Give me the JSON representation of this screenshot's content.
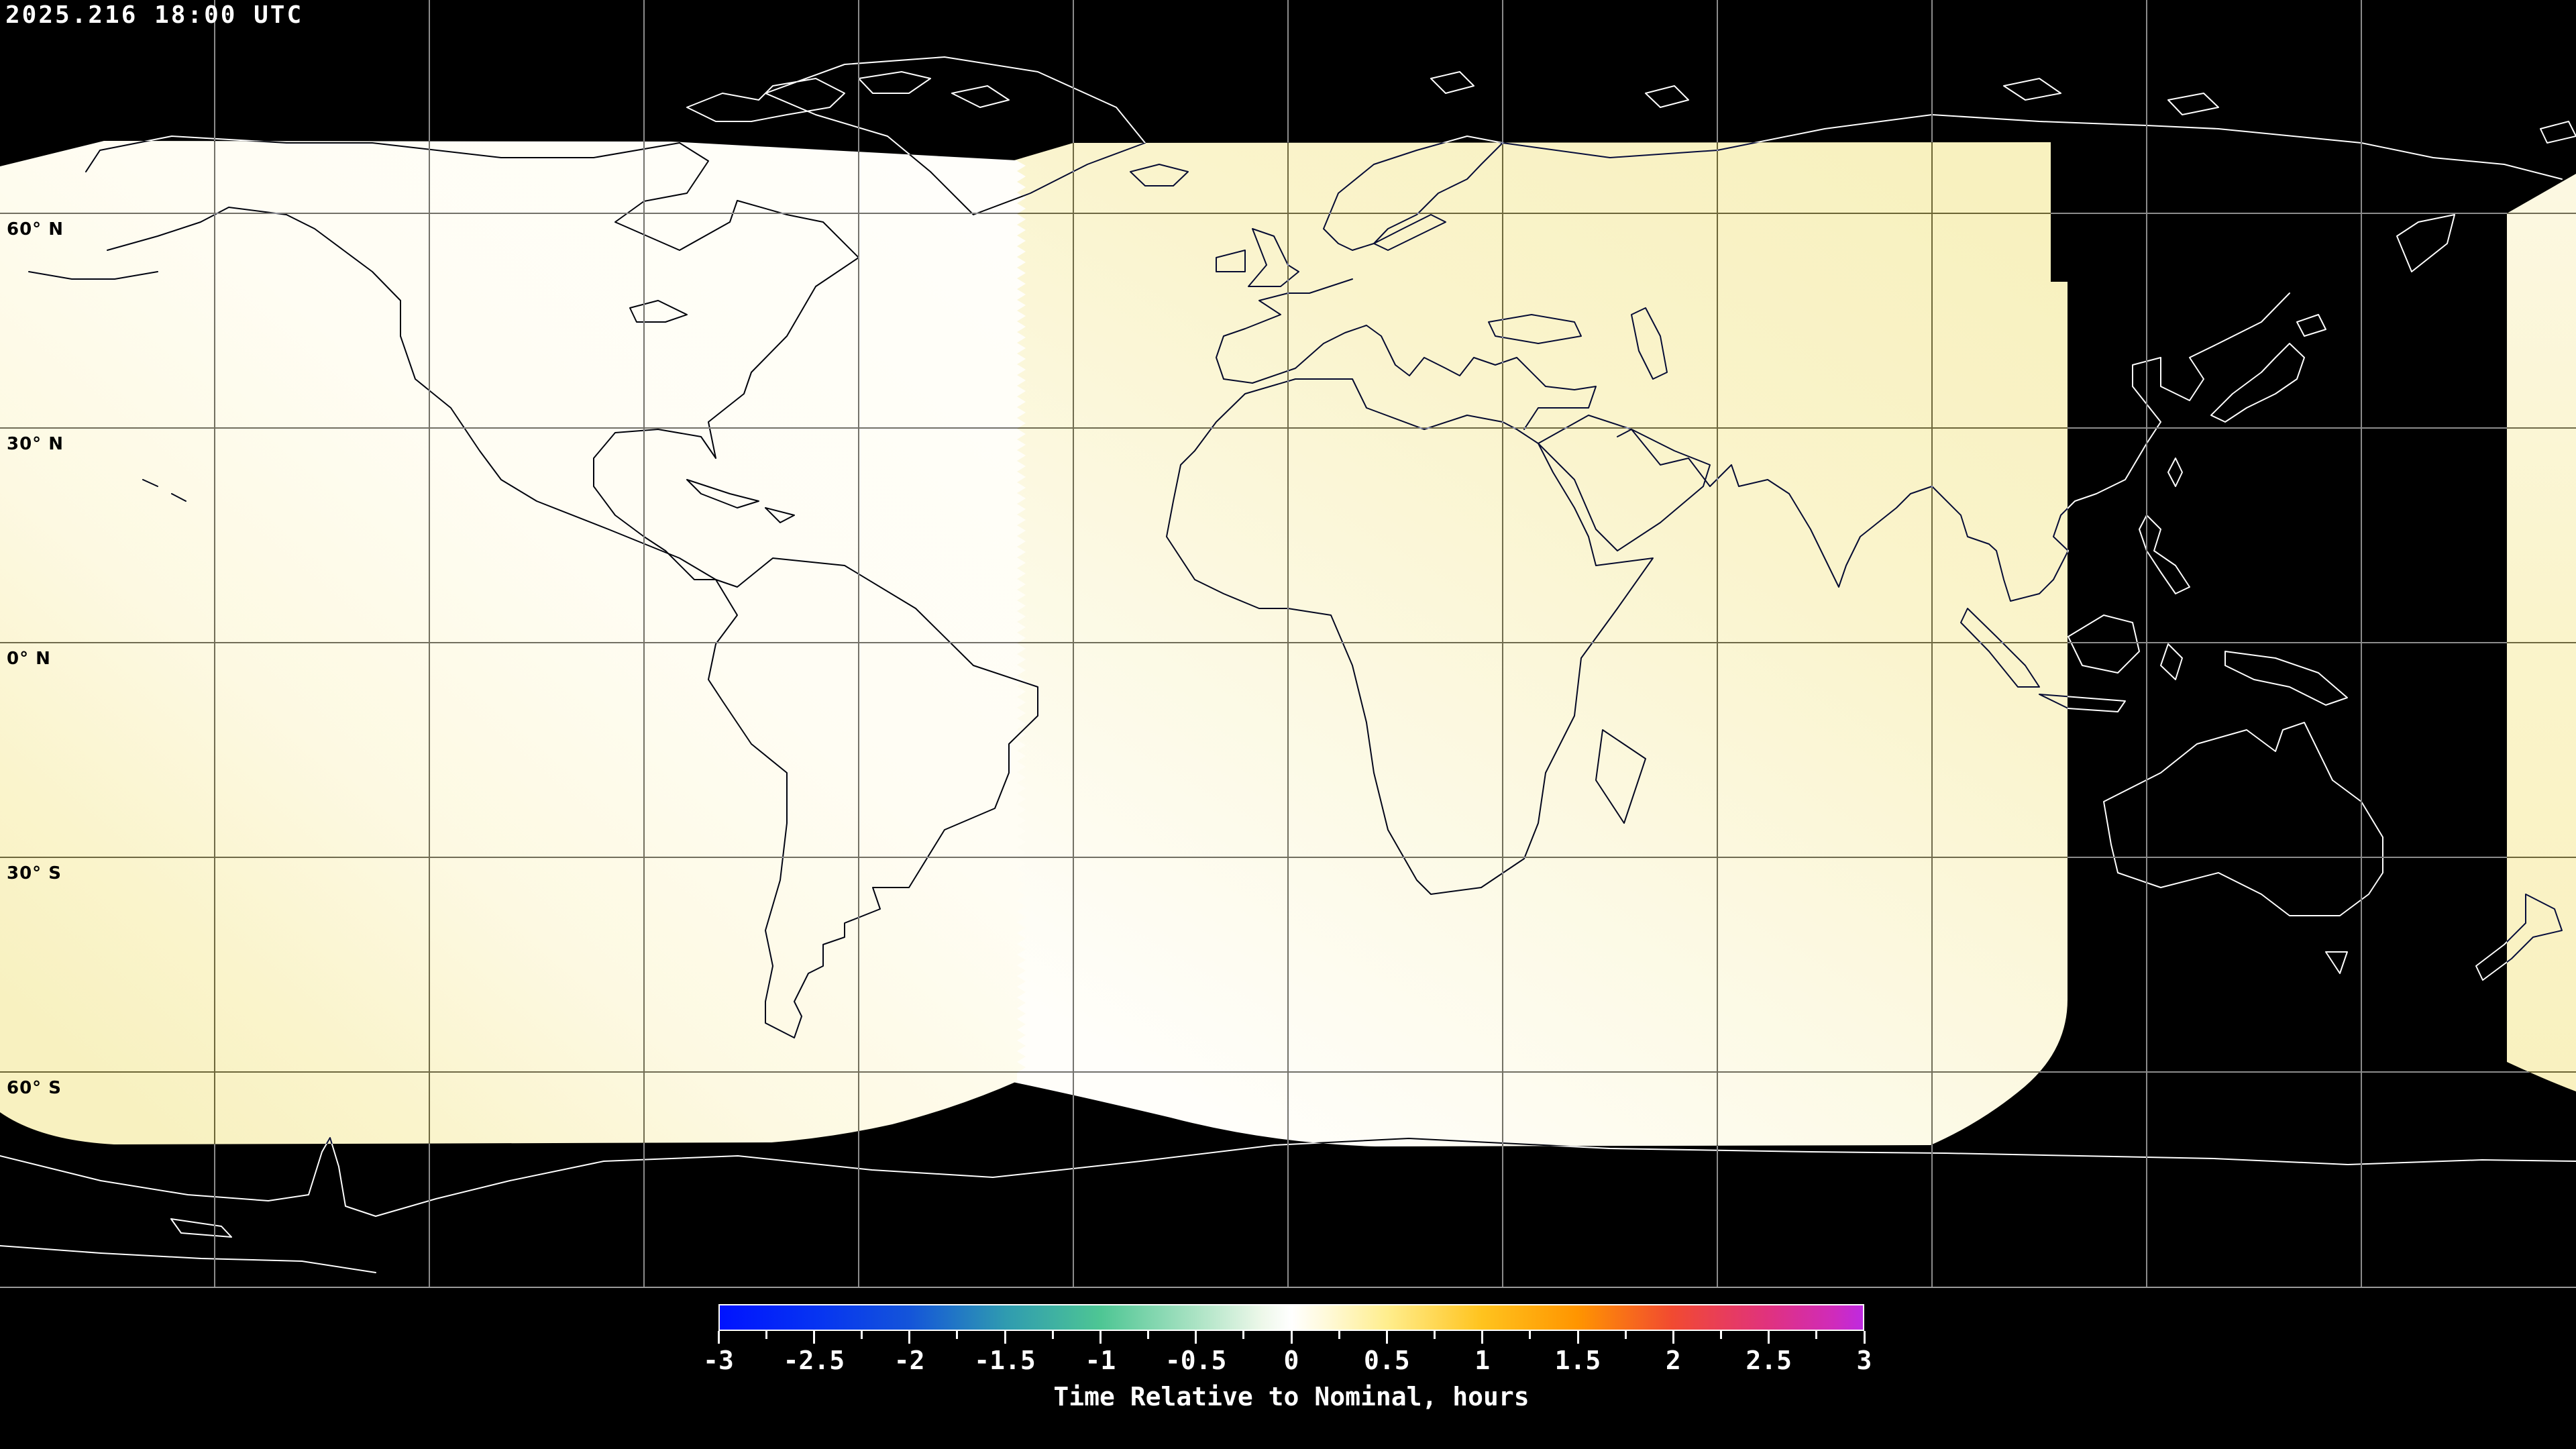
{
  "header": {
    "timestamp": "2025.216 18:00 UTC"
  },
  "map": {
    "projection": "equirectangular",
    "latitude_labels": [
      "60° N",
      "30° N",
      "0° N",
      "30° S",
      "60° S"
    ],
    "gridline_latitudes_deg": [
      60,
      30,
      0,
      -30,
      -60
    ],
    "gridline_longitude_spacing_deg": 30,
    "background_color": "#000000",
    "coastline_on_dark_color": "#ffffff",
    "coastline_on_light_color": "#0a0a0a",
    "coverage_swaths": {
      "west_swath_north_color": "#fffef9",
      "west_swath_south_color": "#f8f1c0",
      "east_swath_north_color": "#f8f1bf",
      "east_swath_south_color": "#fffefa",
      "approx_value_range_hours": [
        0,
        0.5
      ]
    }
  },
  "colorbar": {
    "caption": "Time Relative to Nominal, hours",
    "unit": "hours",
    "min": -3,
    "max": 3,
    "major_tick_step": 0.5,
    "minor_tick_step": 0.25,
    "tick_labels": [
      "-3",
      "-2.5",
      "-2",
      "-1.5",
      "-1",
      "-0.5",
      "0",
      "0.5",
      "1",
      "1.5",
      "2",
      "2.5",
      "3"
    ],
    "gradient_stops": [
      {
        "value": -3.0,
        "color": "#0013ff"
      },
      {
        "value": -2.5,
        "color": "#0633f2"
      },
      {
        "value": -2.0,
        "color": "#1455d9"
      },
      {
        "value": -1.5,
        "color": "#2f9bb0"
      },
      {
        "value": -1.0,
        "color": "#4ec694"
      },
      {
        "value": -0.5,
        "color": "#abe3c4"
      },
      {
        "value": -0.15,
        "color": "#eef8ea"
      },
      {
        "value": 0.0,
        "color": "#ffffff"
      },
      {
        "value": 0.2,
        "color": "#fff9d6"
      },
      {
        "value": 0.5,
        "color": "#ffee8e"
      },
      {
        "value": 1.0,
        "color": "#ffc31e"
      },
      {
        "value": 1.5,
        "color": "#ff9500"
      },
      {
        "value": 2.0,
        "color": "#f14a31"
      },
      {
        "value": 2.5,
        "color": "#e0327e"
      },
      {
        "value": 2.85,
        "color": "#cf2bbb"
      },
      {
        "value": 3.0,
        "color": "#bf2ae0"
      }
    ]
  }
}
